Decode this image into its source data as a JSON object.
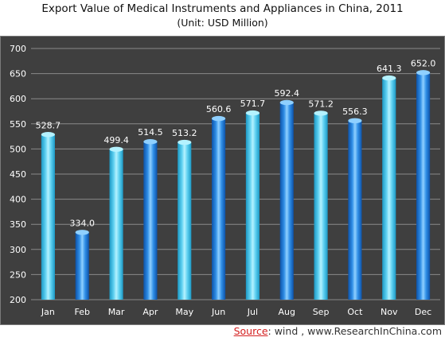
{
  "chart_data": {
    "type": "bar",
    "title": "Export Value of Medical Instruments and Appliances in China, 2011",
    "subtitle": "(Unit: USD Million)",
    "xlabel": "",
    "ylabel": "",
    "categories": [
      "Jan",
      "Feb",
      "Mar",
      "Apr",
      "May",
      "Jun",
      "Jul",
      "Aug",
      "Sep",
      "Oct",
      "Nov",
      "Dec"
    ],
    "values": [
      528.7,
      334.0,
      499.4,
      514.5,
      513.2,
      560.6,
      571.7,
      592.4,
      571.2,
      556.3,
      641.3,
      652.0
    ],
    "value_labels": [
      "528.7",
      "334.0",
      "499.4",
      "514.5",
      "513.2",
      "560.6",
      "571.7",
      "592.4",
      "571.2",
      "556.3",
      "641.3",
      "652.0"
    ],
    "ylim": [
      200,
      700
    ],
    "yticks": [
      200,
      250,
      300,
      350,
      400,
      450,
      500,
      550,
      600,
      650,
      700
    ],
    "grid": true,
    "legend": "none",
    "bar_colors": [
      "light-blue",
      "dark-blue",
      "light-blue",
      "dark-blue",
      "light-blue",
      "dark-blue",
      "light-blue",
      "dark-blue",
      "light-blue",
      "dark-blue",
      "light-blue",
      "dark-blue"
    ]
  },
  "colors": {
    "plot_background": "#3f3f3f",
    "gridline": "#8a8a8a",
    "axis_text": "#ffffff",
    "light_blue_top": "#b4f2ff",
    "light_blue_mid": "#5ccff0",
    "light_blue_edge": "#1c98c4",
    "dark_blue_top": "#8fd0ff",
    "dark_blue_mid": "#2f8ee6",
    "dark_blue_edge": "#0d52a8",
    "source_label": "#d42020"
  },
  "source": {
    "label": "Source",
    "text": ": wind , www.ResearchInChina.com"
  }
}
